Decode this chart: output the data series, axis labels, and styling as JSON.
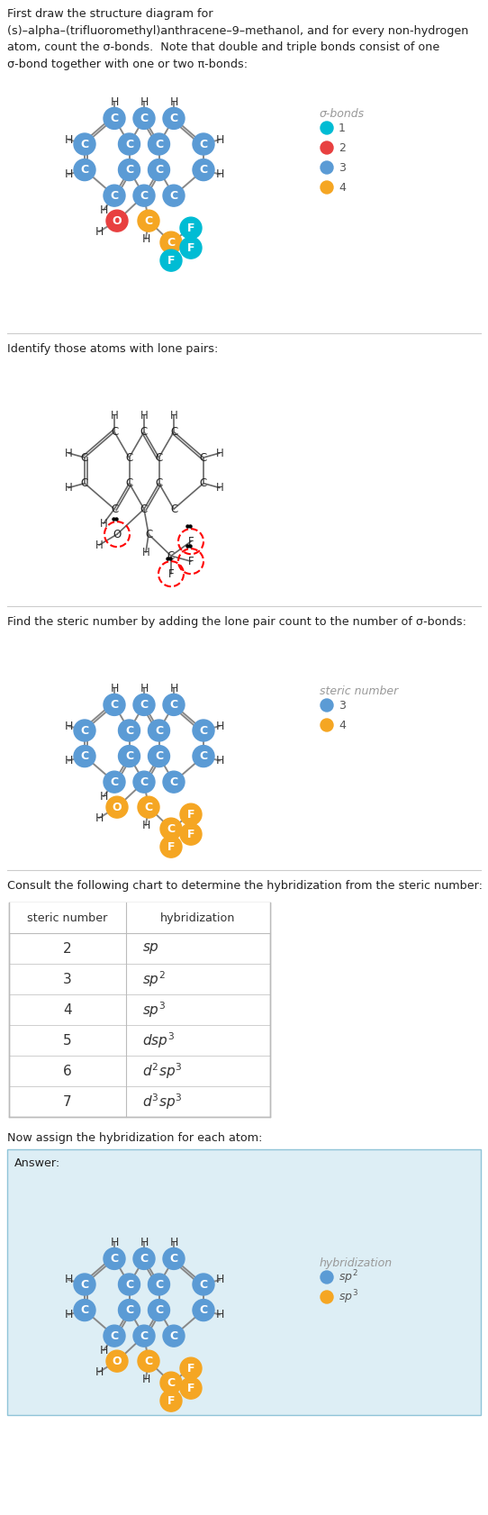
{
  "title_text": "First draw the structure diagram for\n(s)–alpha–(trifluoromethyl)anthracene–9–methanol, and for every non-hydrogen\natom, count the σ-bonds.  Note that double and triple bonds consist of one\nσ-bond together with one or two π-bonds:",
  "section2_text": "Identify those atoms with lone pairs:",
  "section3_text": "Find the steric number by adding the lone pair count to the number of σ-bonds:",
  "section4_text": "Consult the following chart to determine the hybridization from the steric number:",
  "section5_text": "Now assign the hybridization for each atom:",
  "answer_text": "Answer:",
  "bg_color": "#ffffff",
  "atom_blue": "#5b9bd5",
  "atom_orange": "#f5a623",
  "atom_red": "#e84040",
  "atom_cyan": "#00bcd4",
  "text_color": "#222222",
  "divider_color": "#cccccc",
  "table_border": "#bbbbbb",
  "answer_bg": "#ddeef5",
  "legend_gray": "#999999",
  "sigma_label": "σ-bonds",
  "steric_label": "steric number",
  "hybrid_label": "hybridization",
  "table_rows": [
    [
      "2",
      "sp"
    ],
    [
      "3",
      "sp²"
    ],
    [
      "4",
      "sp³"
    ],
    [
      "5",
      "dsp³"
    ],
    [
      "6",
      "d²sp³"
    ],
    [
      "7",
      "d³sp³"
    ]
  ],
  "legend1": [
    [
      "#00bcd4",
      "1"
    ],
    [
      "#e84040",
      "2"
    ],
    [
      "#5b9bd5",
      "3"
    ],
    [
      "#f5a623",
      "4"
    ]
  ],
  "legend3": [
    [
      "#5b9bd5",
      "3"
    ],
    [
      "#f5a623",
      "4"
    ]
  ],
  "legend5": [
    [
      "#5b9bd5",
      "sp²"
    ],
    [
      "#f5a623",
      "sp³"
    ]
  ]
}
